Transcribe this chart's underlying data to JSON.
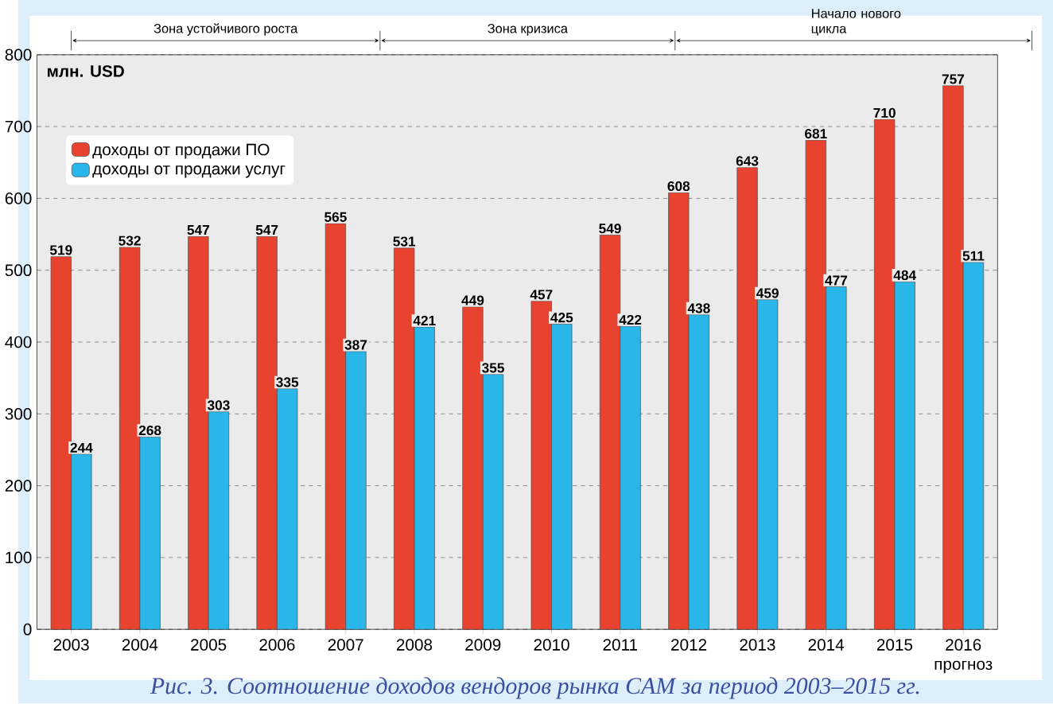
{
  "chart_data": {
    "type": "bar",
    "ylabel": "млн. USD",
    "categories": [
      "2003",
      "2004",
      "2005",
      "2006",
      "2007",
      "2008",
      "2009",
      "2010",
      "2011",
      "2012",
      "2013",
      "2014",
      "2015",
      "2016 прогноз"
    ],
    "series": [
      {
        "name": "доходы от продажи ПО",
        "color": "#e8432f",
        "values": [
          519,
          532,
          547,
          547,
          565,
          531,
          449,
          457,
          549,
          608,
          643,
          681,
          710,
          757
        ]
      },
      {
        "name": "доходы от продажи услуг",
        "color": "#29b6e8",
        "values": [
          244,
          268,
          303,
          335,
          387,
          421,
          355,
          425,
          422,
          438,
          459,
          477,
          484,
          511
        ]
      }
    ],
    "ylim": [
      0,
      800
    ],
    "yticks": [
      0,
      100,
      200,
      300,
      400,
      500,
      600,
      700,
      800
    ],
    "grid": "y",
    "legend": "top left",
    "data_labels": true,
    "annotations": [
      "Зона устойчивого роста",
      "Зона кризиса",
      "Начало нового цикла",
      "Рис. 3. Соотношение доходов вендоров рынка CAM за период 2003–2015 гг."
    ]
  }
}
